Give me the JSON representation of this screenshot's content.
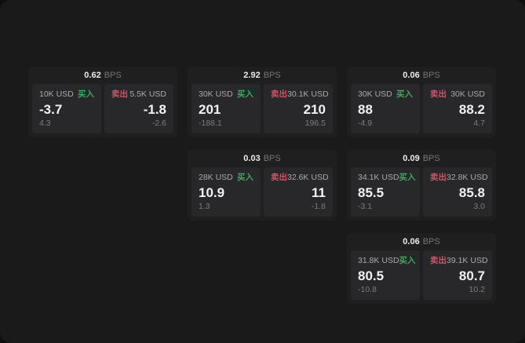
{
  "labels": {
    "buy": "买入",
    "sell": "卖出",
    "bps_unit": "BPS"
  },
  "colors": {
    "window_bg": "#1a1a1b",
    "card_bg": "#1f1f20",
    "panel_bg": "#28282a",
    "buy": "#44a35f",
    "sell": "#ce5468"
  },
  "cards": [
    {
      "bps": "0.62",
      "buy": {
        "amount": "10K USD",
        "value": "-3.7",
        "sub": "4.3"
      },
      "sell": {
        "amount": "5.5K USD",
        "value": "-1.8",
        "sub": "-2.6"
      }
    },
    {
      "bps": "2.92",
      "buy": {
        "amount": "30K USD",
        "value": "201",
        "sub": "-188.1"
      },
      "sell": {
        "amount": "30.1K USD",
        "value": "210",
        "sub": "196.5"
      }
    },
    {
      "bps": "0.06",
      "buy": {
        "amount": "30K USD",
        "value": "88",
        "sub": "-4.9"
      },
      "sell": {
        "amount": "30K USD",
        "value": "88.2",
        "sub": "4.7"
      }
    },
    {
      "bps": "0.03",
      "buy": {
        "amount": "28K USD",
        "value": "10.9",
        "sub": "1.3"
      },
      "sell": {
        "amount": "32.6K USD",
        "value": "11",
        "sub": "-1.8"
      }
    },
    {
      "bps": "0.09",
      "buy": {
        "amount": "34.1K USD",
        "value": "85.5",
        "sub": "-3.1"
      },
      "sell": {
        "amount": "32.8K USD",
        "value": "85.8",
        "sub": "3.0"
      }
    },
    {
      "bps": "0.06",
      "buy": {
        "amount": "31.8K USD",
        "value": "80.5",
        "sub": "-10.8"
      },
      "sell": {
        "amount": "39.1K USD",
        "value": "80.7",
        "sub": "10.2"
      }
    }
  ]
}
